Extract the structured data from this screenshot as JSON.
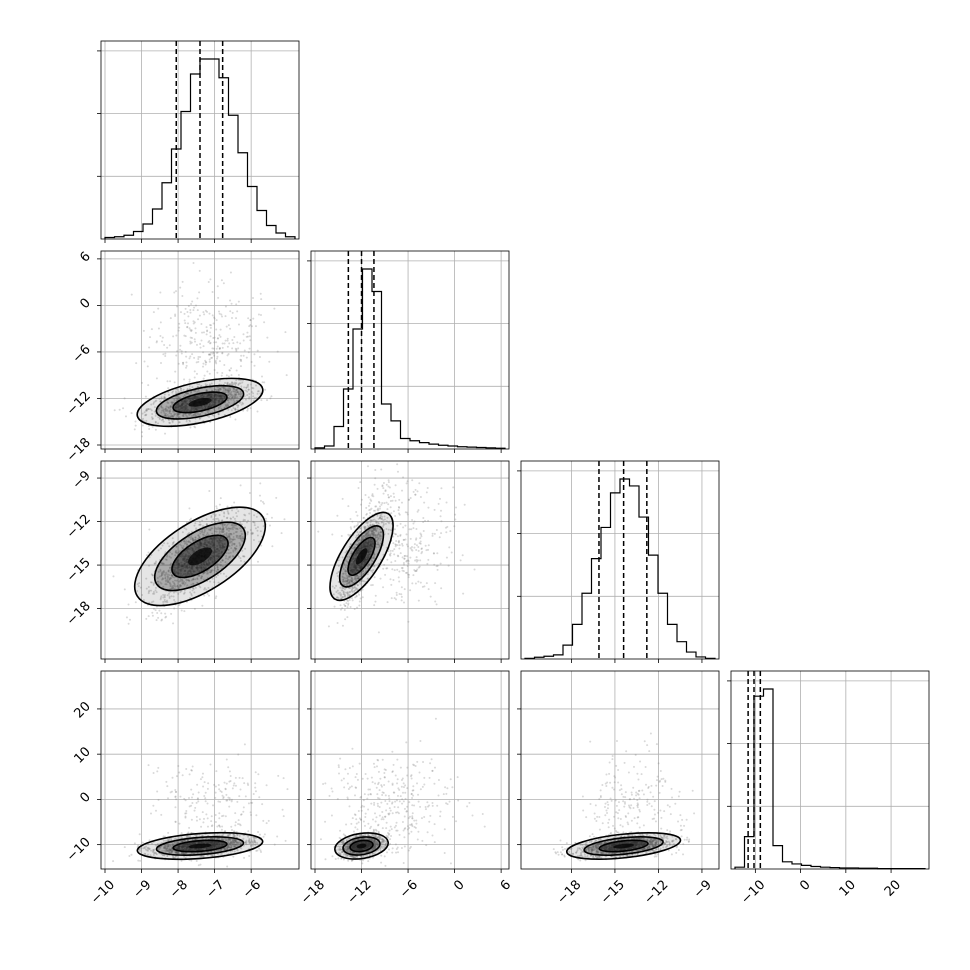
{
  "chart_data": {
    "type": "corner",
    "title": "",
    "parameters": [
      "",
      "",
      "",
      ""
    ],
    "axes": [
      {
        "range": [
          -10,
          -4.8
        ],
        "ticks": [
          -10,
          -9,
          -8,
          -7,
          -6
        ],
        "tick_labels": [
          "−10",
          "−9",
          "−8",
          "−7",
          "−6"
        ],
        "quantiles": [
          -8.05,
          -7.4,
          -6.78
        ]
      },
      {
        "range": [
          -18,
          6.5
        ],
        "ticks": [
          -18,
          -12,
          -6,
          0,
          6
        ],
        "tick_labels": [
          "−18",
          "−12",
          "−6",
          "0",
          "6"
        ],
        "quantiles": [
          -13.7,
          -12.0,
          -10.4
        ]
      },
      {
        "range": [
          -21.2,
          -8.1
        ],
        "ticks": [
          -18,
          -15,
          -12,
          -9
        ],
        "tick_labels": [
          "−18",
          "−15",
          "−12",
          "−9"
        ],
        "quantiles": [
          -16.1,
          -14.4,
          -12.8
        ]
      },
      {
        "range": [
          -14.5,
          27.5
        ],
        "ticks": [
          -10,
          0,
          10,
          20
        ],
        "tick_labels": [
          "−10",
          "0",
          "10",
          "20"
        ],
        "quantiles": [
          -11.6,
          -10.3,
          -8.9
        ]
      }
    ],
    "histograms": [
      {
        "edges_range": [
          -10,
          -4.8
        ],
        "counts": [
          2,
          3,
          5,
          10,
          20,
          40,
          75,
          120,
          170,
          220,
          240,
          240,
          215,
          165,
          115,
          70,
          38,
          18,
          8,
          3
        ]
      },
      {
        "edges_range": [
          -18,
          6.5
        ],
        "counts": [
          3,
          8,
          60,
          160,
          320,
          480,
          420,
          120,
          75,
          28,
          22,
          17,
          13,
          10,
          8,
          6,
          5,
          4,
          3,
          2
        ]
      },
      {
        "edges_range": [
          -21.2,
          -8.1
        ],
        "counts": [
          2,
          5,
          8,
          12,
          40,
          100,
          190,
          290,
          380,
          480,
          520,
          500,
          410,
          300,
          190,
          100,
          50,
          20,
          6,
          2
        ]
      },
      {
        "edges_range": [
          -14.5,
          27.5
        ],
        "counts": [
          5,
          90,
          480,
          500,
          65,
          20,
          14,
          10,
          7,
          5,
          4,
          3,
          3,
          2,
          2,
          1,
          1,
          1,
          1,
          1
        ]
      }
    ],
    "pairs": [
      {
        "row": 1,
        "col": 0,
        "mean": [
          -7.4,
          -12.5
        ],
        "sd": [
          0.7,
          1.3
        ],
        "corr": 0.55,
        "tail_frac": 0.25,
        "tail_mean": [
          -7.2,
          -5.0
        ],
        "tail_sd": [
          0.8,
          4.0
        ]
      },
      {
        "row": 2,
        "col": 0,
        "mean": [
          -7.4,
          -14.4
        ],
        "sd": [
          0.7,
          1.6
        ],
        "corr": 0.7,
        "tail_frac": 0.0
      },
      {
        "row": 2,
        "col": 1,
        "mean": [
          -12.0,
          -14.4
        ],
        "sd": [
          1.4,
          1.6
        ],
        "corr": 0.75,
        "tail_frac": 0.25,
        "tail_mean": [
          -7.0,
          -13.5
        ],
        "tail_sd": [
          3.5,
          2.2
        ]
      },
      {
        "row": 3,
        "col": 0,
        "mean": [
          -7.4,
          -10.3
        ],
        "sd": [
          0.7,
          1.2
        ],
        "corr": 0.35,
        "tail_frac": 0.15,
        "tail_mean": [
          -7.0,
          -2.0
        ],
        "tail_sd": [
          0.8,
          6.0
        ]
      },
      {
        "row": 3,
        "col": 1,
        "mean": [
          -12.0,
          -10.3
        ],
        "sd": [
          1.4,
          1.2
        ],
        "corr": 0.3,
        "tail_frac": 0.25,
        "tail_mean": [
          -8.0,
          -2.0
        ],
        "tail_sd": [
          4.0,
          6.0
        ]
      },
      {
        "row": 3,
        "col": 2,
        "mean": [
          -14.4,
          -10.3
        ],
        "sd": [
          1.6,
          1.2
        ],
        "corr": 0.45,
        "tail_frac": 0.15,
        "tail_mean": [
          -13.5,
          -2.0
        ],
        "tail_sd": [
          1.6,
          6.0
        ]
      }
    ],
    "grid": true,
    "colors": {
      "points": "#808080",
      "contour": "#000000",
      "grid": "#b0b0b0",
      "fill": "#000000"
    }
  }
}
